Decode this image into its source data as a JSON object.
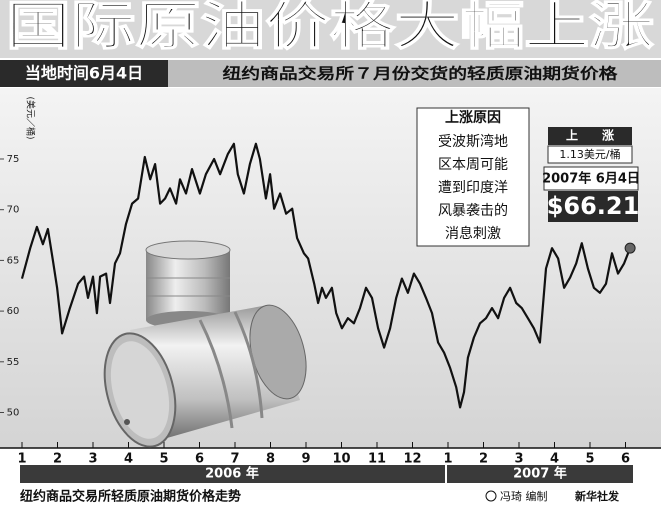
{
  "chart_data": {
    "type": "line",
    "title": "国际原油价格大幅上涨",
    "date_tag": "当地时间6月4日",
    "subtitle": "纽约商品交易所７月份交货的轻质原油期货价格",
    "y_label": "(美元／桶)",
    "color": "#111111",
    "x": [
      0,
      0.23,
      0.42,
      0.59,
      0.73,
      0.87,
      0.99,
      1.13,
      1.35,
      1.58,
      1.75,
      1.86,
      2.0,
      2.11,
      2.2,
      2.37,
      2.48,
      2.62,
      2.76,
      2.93,
      3.1,
      3.27,
      3.46,
      3.61,
      3.75,
      3.89,
      4.03,
      4.17,
      4.34,
      4.45,
      4.62,
      4.79,
      5.01,
      5.18,
      5.41,
      5.58,
      5.8,
      5.97,
      6.08,
      6.25,
      6.42,
      6.59,
      6.7,
      6.87,
      6.99,
      7.1,
      7.27,
      7.44,
      7.61,
      7.75,
      7.94,
      8.06,
      8.23,
      8.34,
      8.45,
      8.56,
      8.73,
      8.85,
      9.01,
      9.18,
      9.35,
      9.52,
      9.69,
      9.86,
      10.03,
      10.2,
      10.37,
      10.54,
      10.7,
      10.87,
      11.04,
      11.21,
      11.38,
      11.55,
      11.72,
      11.89,
      12.06,
      12.23,
      12.34,
      12.45,
      12.56,
      12.73,
      12.9,
      13.07,
      13.24,
      13.41,
      13.58,
      13.75,
      13.92,
      14.08,
      14.25,
      14.42,
      14.59,
      14.76,
      14.93,
      15.1,
      15.27,
      15.44,
      15.61,
      15.77,
      15.94,
      16.11,
      16.28,
      16.45,
      16.62,
      16.79,
      16.96,
      17.13
    ],
    "values": [
      63.2,
      66.2,
      68.3,
      66.6,
      68.1,
      65,
      62.3,
      57.8,
      60.3,
      62.7,
      63.4,
      61.3,
      63.4,
      59.8,
      63.4,
      63.7,
      60.8,
      64.7,
      65.7,
      68.6,
      70.6,
      71.1,
      75.2,
      73,
      74.5,
      70.6,
      71.1,
      72.1,
      70.6,
      73,
      71.6,
      74,
      71.6,
      73.5,
      75,
      73.5,
      75.5,
      76.5,
      73.5,
      71.6,
      74.5,
      76.5,
      75,
      71.1,
      73.5,
      70.1,
      71.6,
      69.6,
      70.1,
      67.2,
      65.7,
      65.2,
      62.7,
      60.8,
      62.3,
      61.3,
      62.3,
      59.8,
      58.3,
      59.3,
      58.8,
      60.3,
      62.3,
      61.3,
      58.3,
      56.4,
      58.3,
      61.3,
      63.2,
      61.8,
      63.7,
      62.7,
      61.3,
      59.8,
      56.9,
      55.9,
      54.4,
      52.5,
      50.5,
      52,
      55.4,
      57.4,
      58.8,
      59.3,
      60.3,
      59.3,
      61.3,
      62.3,
      60.8,
      60.3,
      59.3,
      58.3,
      56.9,
      64.2,
      66.2,
      65.2,
      62.3,
      63.3,
      64.7,
      66.7,
      64.2,
      62.3,
      61.8,
      62.7,
      65.7,
      63.7,
      64.7,
      66.21
    ],
    "xlim": [
      0,
      17.2
    ],
    "xticks": [
      {
        "value": 0,
        "label": "1"
      },
      {
        "value": 1,
        "label": "2"
      },
      {
        "value": 2,
        "label": "3"
      },
      {
        "value": 3,
        "label": "4"
      },
      {
        "value": 4,
        "label": "5"
      },
      {
        "value": 5,
        "label": "6"
      },
      {
        "value": 6,
        "label": "7"
      },
      {
        "value": 7,
        "label": "8"
      },
      {
        "value": 8,
        "label": "9"
      },
      {
        "value": 9,
        "label": "10"
      },
      {
        "value": 10,
        "label": "11"
      },
      {
        "value": 11,
        "label": "12"
      },
      {
        "value": 12,
        "label": "1"
      },
      {
        "value": 13,
        "label": "2"
      },
      {
        "value": 14,
        "label": "3"
      },
      {
        "value": 15,
        "label": "4"
      },
      {
        "value": 16,
        "label": "5"
      },
      {
        "value": 17,
        "label": "6"
      }
    ],
    "ylim": [
      46.5,
      82
    ],
    "yticks": [
      50,
      55,
      60,
      65,
      70,
      75
    ],
    "year_labels": [
      "2006 年",
      "2007 年"
    ],
    "reason_title": "上涨原因",
    "reason_lines": [
      "受波斯湾地",
      "区本周可能",
      "遭到印度洋",
      "风暴袭击的",
      "消息刺激"
    ],
    "rise_label": "上　　涨",
    "rise_value": "1.13美元/桶",
    "date_label": "2007年 6月4日",
    "price_label": "$66.21",
    "footer_title": "纽约商品交易所轻质原油期货价格走势",
    "credit": "冯琦 编制",
    "publisher": "新华社发"
  }
}
